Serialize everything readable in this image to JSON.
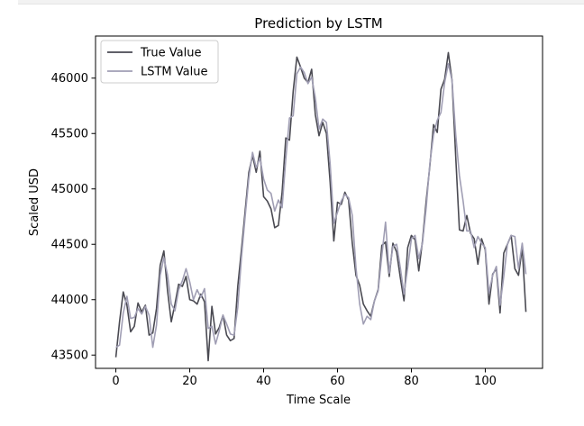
{
  "chart_data": {
    "type": "line",
    "title": "Prediction by LSTM",
    "xlabel": "Time Scale",
    "ylabel": "Scaled USD",
    "xlim": [
      -5.5,
      115.5
    ],
    "ylim": [
      43380,
      46380
    ],
    "xticks": [
      0,
      20,
      40,
      60,
      80,
      100
    ],
    "yticks": [
      43500,
      44000,
      44500,
      45000,
      45500,
      46000
    ],
    "xtick_labels": [
      "0",
      "20",
      "40",
      "60",
      "80",
      "100"
    ],
    "ytick_labels": [
      "43500",
      "44000",
      "44500",
      "45000",
      "45500",
      "46000"
    ],
    "grid": false,
    "legend_position": "top-left",
    "series": [
      {
        "name": "True Value",
        "color": "#4a4a52",
        "values": [
          43480,
          43800,
          44070,
          43950,
          43710,
          43760,
          43970,
          43890,
          43950,
          43680,
          43700,
          43920,
          44310,
          44440,
          44080,
          43800,
          43960,
          44140,
          44120,
          44210,
          44000,
          43990,
          43960,
          44050,
          43980,
          43450,
          43940,
          43690,
          43750,
          43860,
          43680,
          43630,
          43650,
          44120,
          44450,
          44800,
          45150,
          45300,
          45150,
          45340,
          44930,
          44890,
          44820,
          44650,
          44670,
          44970,
          45460,
          45440,
          45880,
          46190,
          46100,
          46000,
          45960,
          46080,
          45670,
          45480,
          45600,
          45500,
          45060,
          44530,
          44880,
          44860,
          44970,
          44900,
          44510,
          44220,
          44130,
          43960,
          43900,
          43850,
          43990,
          44090,
          44490,
          44520,
          44210,
          44510,
          44430,
          44200,
          43990,
          44470,
          44580,
          44540,
          44260,
          44530,
          44890,
          45210,
          45580,
          45510,
          45900,
          45990,
          46230,
          45980,
          45290,
          44630,
          44620,
          44760,
          44600,
          44550,
          44320,
          44550,
          44450,
          43960,
          44230,
          44280,
          43880,
          44420,
          44500,
          44580,
          44280,
          44220,
          44470,
          43890
        ]
      },
      {
        "name": "LSTM Value",
        "color": "#a09eb4",
        "values": [
          43570,
          43590,
          43880,
          44030,
          43830,
          43840,
          43920,
          43870,
          43940,
          43860,
          43570,
          43770,
          44220,
          44380,
          44220,
          43960,
          43900,
          44090,
          44170,
          44280,
          44160,
          44000,
          44090,
          44020,
          44100,
          43740,
          43760,
          43600,
          43720,
          43860,
          43780,
          43690,
          43680,
          43930,
          44380,
          44750,
          45100,
          45330,
          45190,
          45280,
          45090,
          44990,
          44960,
          44800,
          44900,
          44830,
          45270,
          45640,
          45660,
          46040,
          46100,
          46050,
          45950,
          46010,
          45820,
          45540,
          45630,
          45600,
          45230,
          44690,
          44790,
          44890,
          44950,
          44920,
          44760,
          44290,
          43960,
          43780,
          43850,
          43820,
          43990,
          44080,
          44400,
          44700,
          44240,
          44480,
          44500,
          44290,
          44050,
          44290,
          44550,
          44580,
          44370,
          44510,
          44830,
          45230,
          45490,
          45620,
          45690,
          45960,
          46130,
          45980,
          45490,
          45120,
          44890,
          44620,
          44620,
          44470,
          44570,
          44510,
          44470,
          44060,
          44220,
          44300,
          43950,
          44210,
          44500,
          44580,
          44570,
          44280,
          44510,
          44230
        ]
      }
    ]
  }
}
